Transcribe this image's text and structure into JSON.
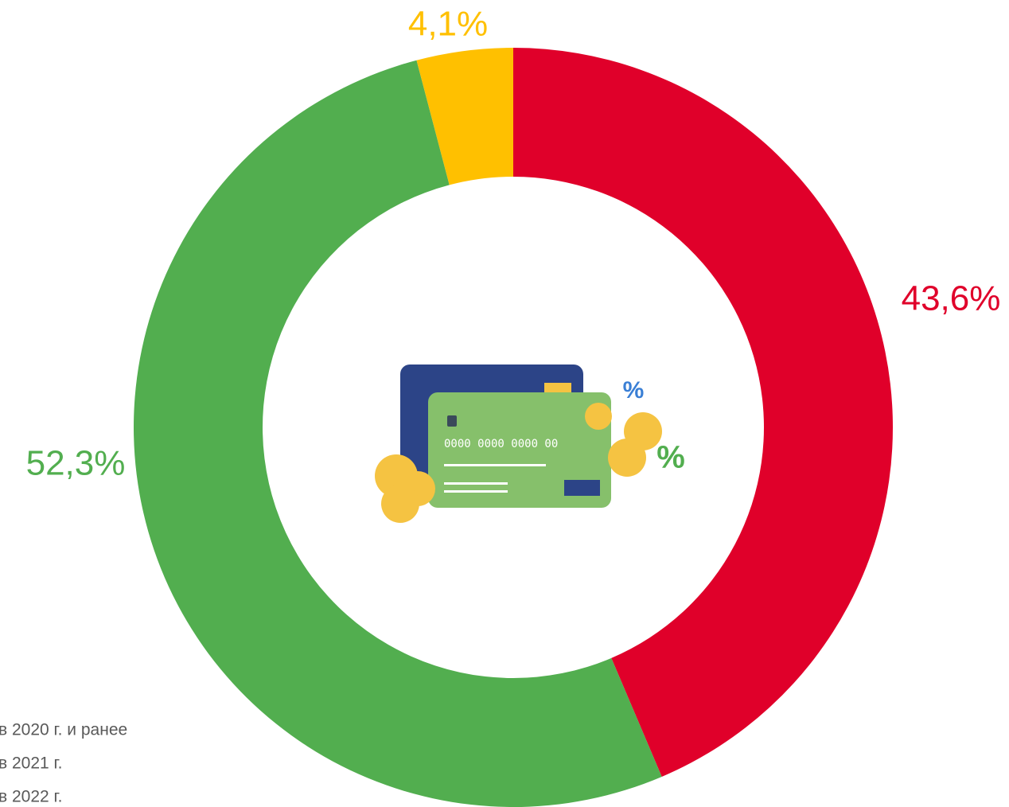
{
  "chart_data": {
    "type": "pie",
    "categories": [
      "в 2020 г. и ранее",
      "в 2021 г.",
      "в 2022 г."
    ],
    "values": [
      43.6,
      52.3,
      4.1
    ],
    "value_labels": [
      "43,6%",
      "52,3%",
      "4,1%"
    ],
    "colors": [
      "#e0002a",
      "#52ae4f",
      "#ffc000"
    ]
  }
}
